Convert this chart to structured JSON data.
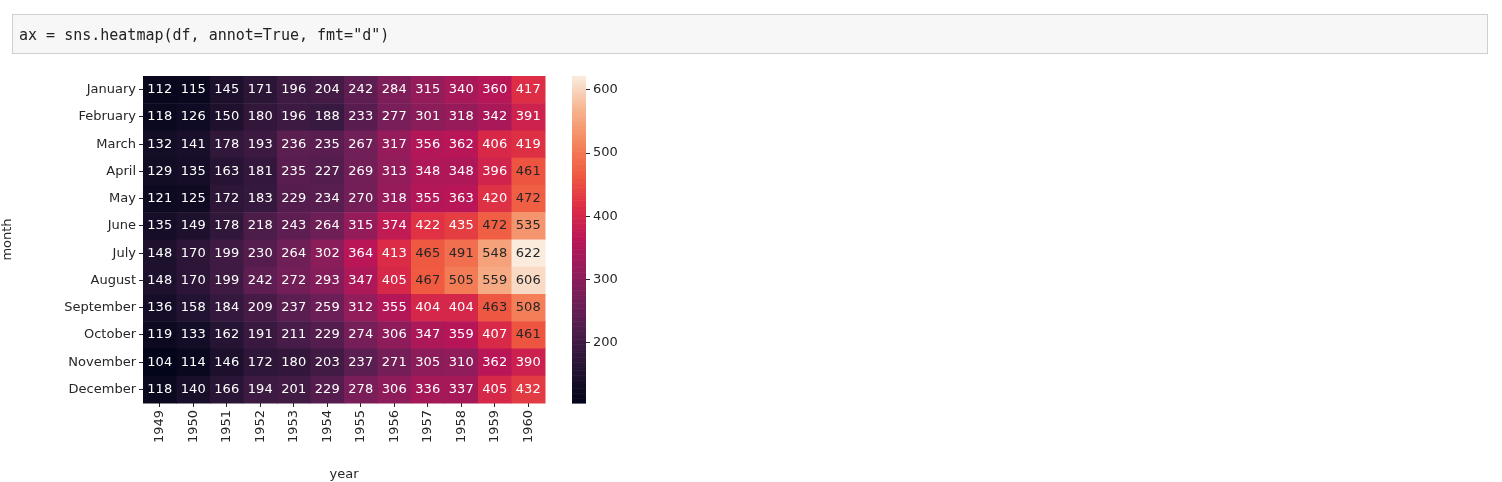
{
  "chart_data": {
    "type": "heatmap",
    "xlabel": "year",
    "ylabel": "month",
    "annotations": [
      "ax = sns.heatmap(df, annot=True, fmt=\"d\")"
    ],
    "categories": [
      "1949",
      "1950",
      "1951",
      "1952",
      "1953",
      "1954",
      "1955",
      "1956",
      "1957",
      "1958",
      "1959",
      "1960"
    ],
    "y_categories": [
      "January",
      "February",
      "March",
      "April",
      "May",
      "June",
      "July",
      "August",
      "September",
      "October",
      "November",
      "December"
    ],
    "cells": [
      [
        112,
        115,
        145,
        171,
        196,
        204,
        242,
        284,
        315,
        340,
        360,
        417
      ],
      [
        118,
        126,
        150,
        180,
        196,
        188,
        233,
        277,
        301,
        318,
        342,
        391
      ],
      [
        132,
        141,
        178,
        193,
        236,
        235,
        267,
        317,
        356,
        362,
        406,
        419
      ],
      [
        129,
        135,
        163,
        181,
        235,
        227,
        269,
        313,
        348,
        348,
        396,
        461
      ],
      [
        121,
        125,
        172,
        183,
        229,
        234,
        270,
        318,
        355,
        363,
        420,
        472
      ],
      [
        135,
        149,
        178,
        218,
        243,
        264,
        315,
        374,
        422,
        435,
        472,
        535
      ],
      [
        148,
        170,
        199,
        230,
        264,
        302,
        364,
        413,
        465,
        491,
        548,
        622
      ],
      [
        148,
        170,
        199,
        242,
        272,
        293,
        347,
        405,
        467,
        505,
        559,
        606
      ],
      [
        136,
        158,
        184,
        209,
        237,
        259,
        312,
        355,
        404,
        404,
        463,
        508
      ],
      [
        119,
        133,
        162,
        191,
        211,
        229,
        274,
        306,
        347,
        359,
        407,
        461
      ],
      [
        104,
        114,
        146,
        172,
        180,
        203,
        237,
        271,
        305,
        310,
        362,
        390
      ],
      [
        118,
        140,
        166,
        194,
        201,
        229,
        278,
        306,
        336,
        337,
        405,
        432
      ]
    ],
    "data_labels": true,
    "clim": [
      104,
      622
    ],
    "cticks": [
      200,
      300,
      400,
      500,
      600
    ]
  }
}
